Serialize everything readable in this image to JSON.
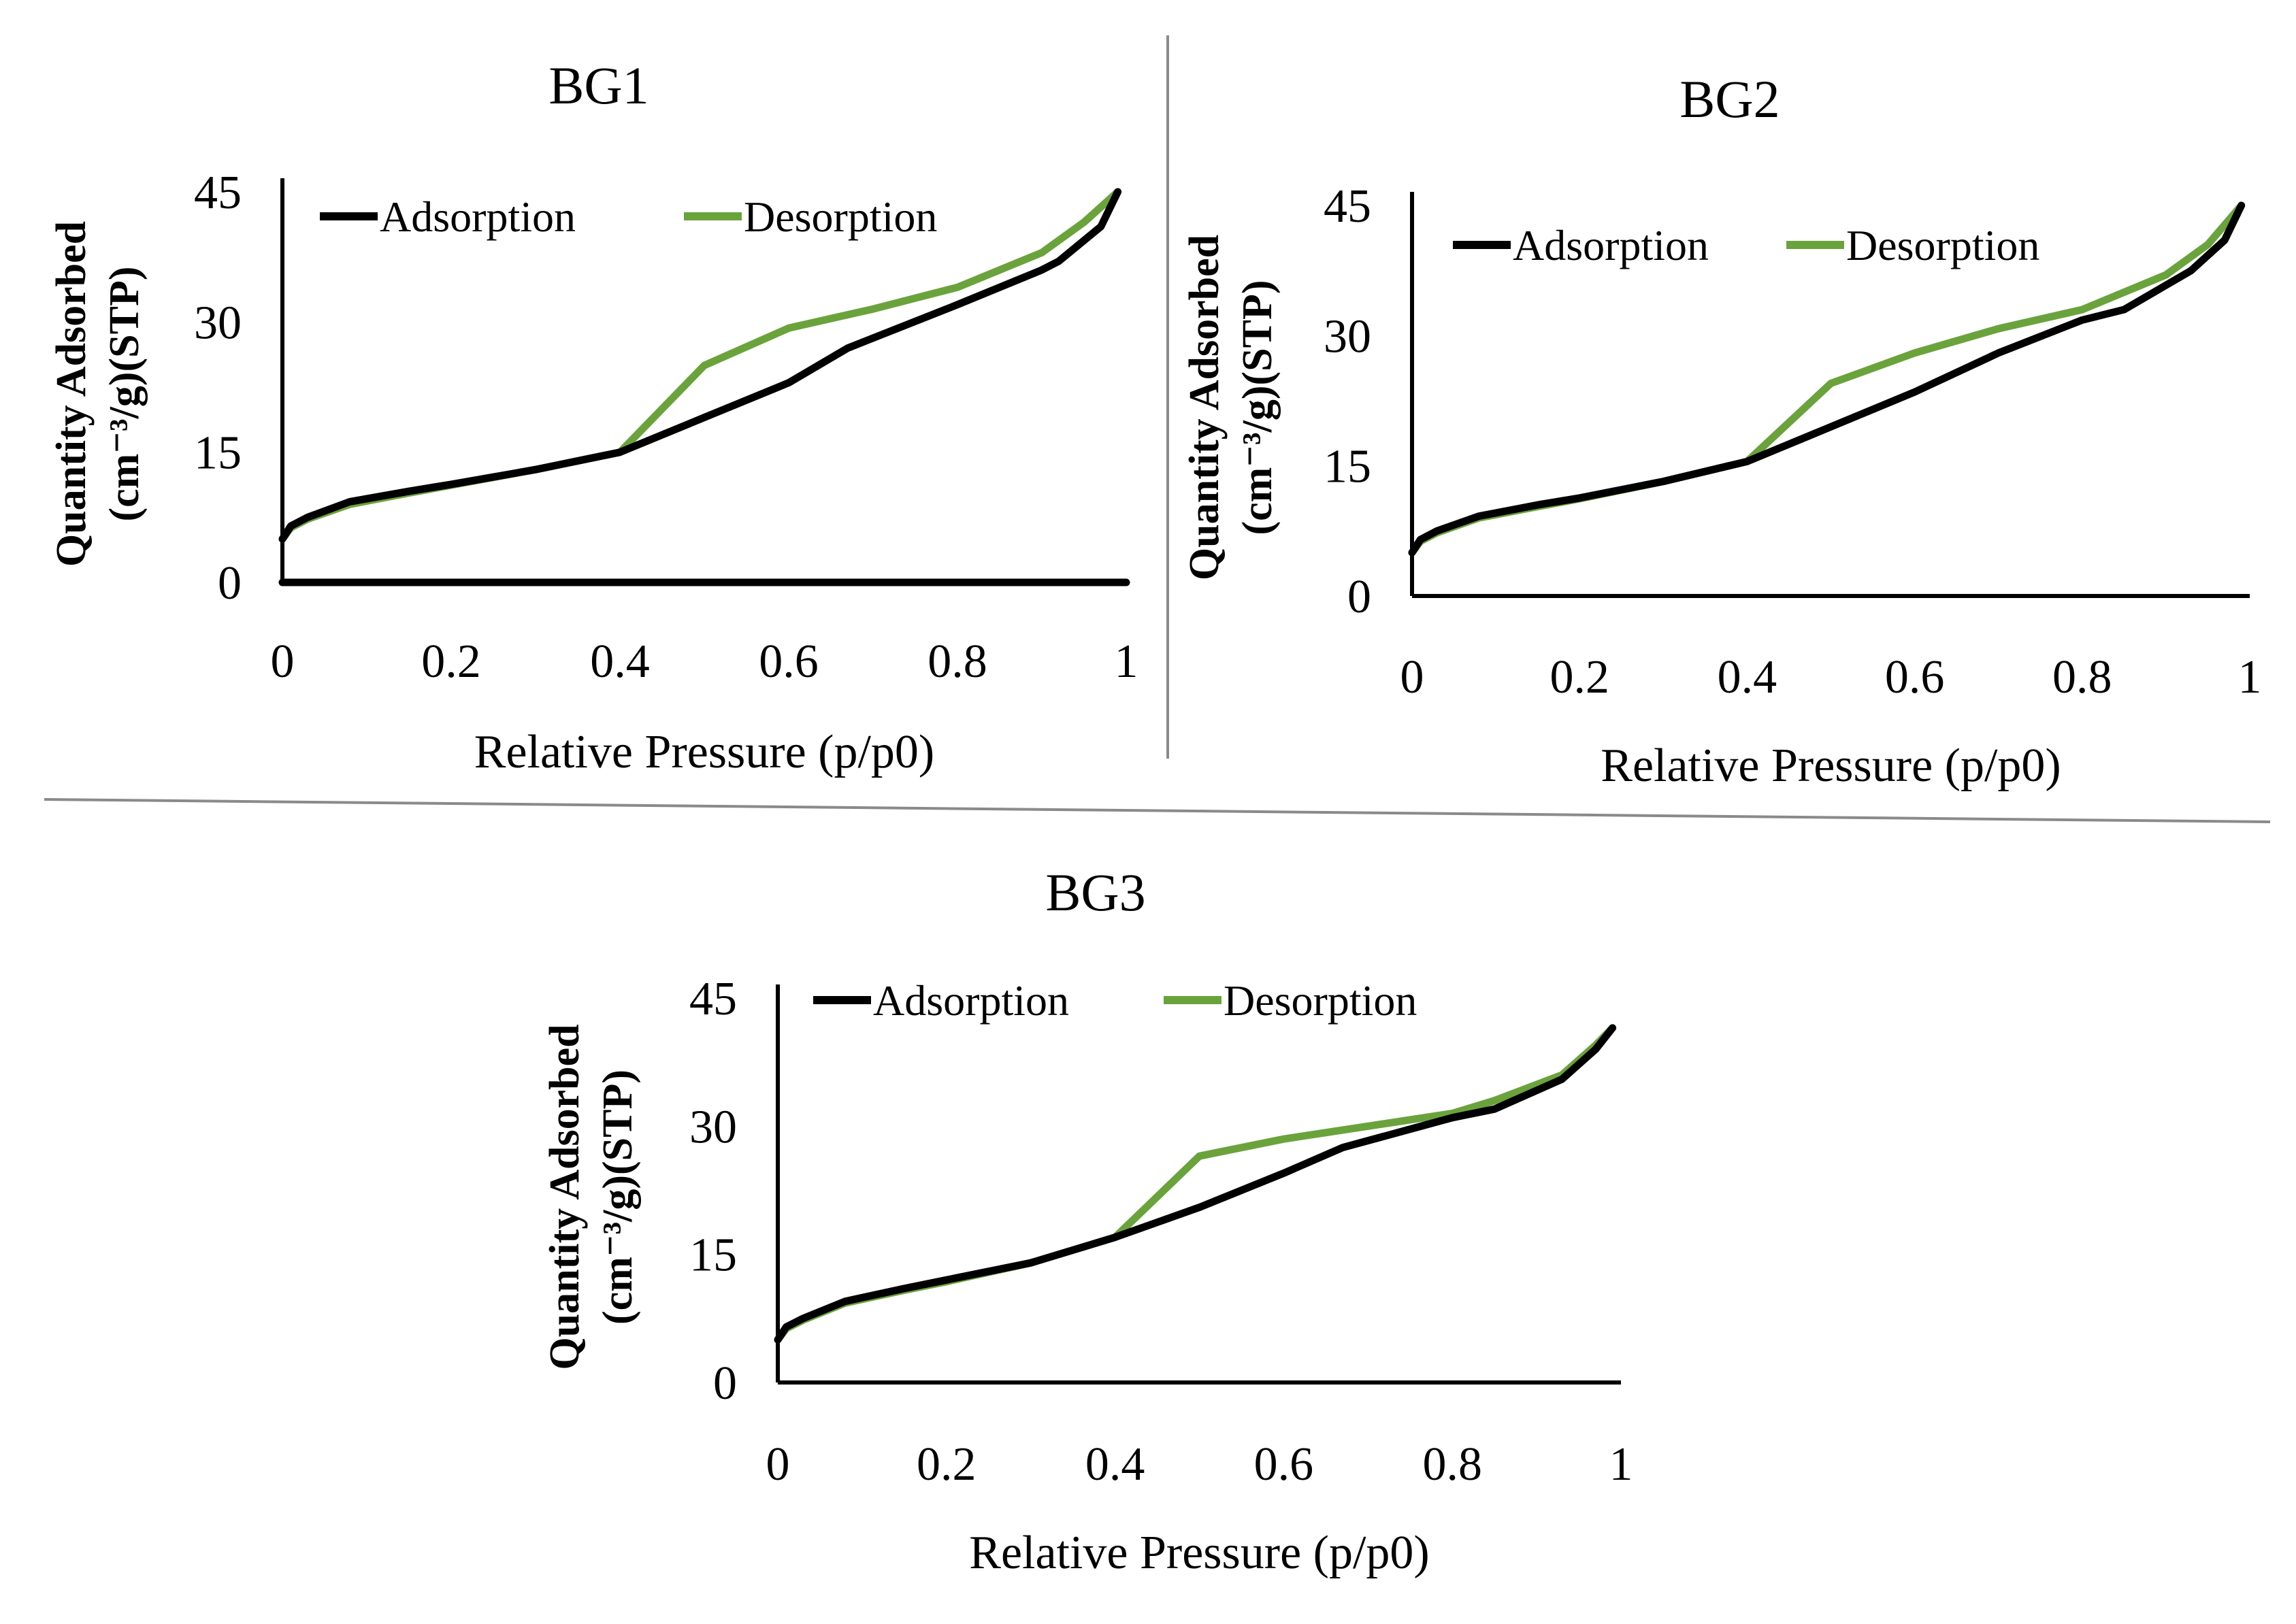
{
  "colors": {
    "adsorption": "#000000",
    "desorption": "#6aa33c"
  },
  "chart_data": [
    {
      "type": "line",
      "title": "BG1",
      "xlabel": "Relative Pressure (p/p0)",
      "ylabel_line1": "Quantity Adsorbed",
      "ylabel_line2": "(cm⁻³/g)(STP)",
      "xlim": [
        0,
        1
      ],
      "ylim": [
        0,
        45
      ],
      "xticks": [
        "0",
        "0.2",
        "0.4",
        "0.6",
        "0.8",
        "1"
      ],
      "yticks": [
        "0",
        "15",
        "30",
        "45"
      ],
      "legend_position": "top-left",
      "series": [
        {
          "name": "Adsorption",
          "x": [
            0,
            0.01,
            0.03,
            0.08,
            0.15,
            0.2,
            0.3,
            0.4,
            0.5,
            0.6,
            0.67,
            0.8,
            0.9,
            0.92,
            0.97,
            0.99
          ],
          "y": [
            5,
            6.5,
            7.5,
            9.3,
            10.5,
            11.3,
            13,
            15,
            19,
            23,
            27,
            32,
            36,
            37,
            41,
            45
          ]
        },
        {
          "name": "Desorption",
          "x": [
            0,
            0.01,
            0.03,
            0.08,
            0.15,
            0.2,
            0.3,
            0.4,
            0.5,
            0.6,
            0.7,
            0.8,
            0.9,
            0.95,
            0.99
          ],
          "y": [
            5,
            6.3,
            7.3,
            9,
            10.3,
            11.2,
            13,
            15,
            25,
            29.3,
            31.5,
            34,
            38,
            41.5,
            45
          ]
        },
        {
          "name": "Baseline",
          "x": [
            0,
            1
          ],
          "y": [
            0,
            0
          ]
        }
      ]
    },
    {
      "type": "line",
      "title": "BG2",
      "xlabel": "Relative Pressure (p/p0)",
      "ylabel_line1": "Quantity Adsorbed",
      "ylabel_line2": "(cm⁻³/g)(STP)",
      "xlim": [
        0,
        1
      ],
      "ylim": [
        0,
        45
      ],
      "xticks": [
        "0",
        "0.2",
        "0.4",
        "0.6",
        "0.8",
        "1"
      ],
      "yticks": [
        "0",
        "15",
        "30",
        "45"
      ],
      "legend_position": "top-left",
      "series": [
        {
          "name": "Adsorption",
          "x": [
            0,
            0.01,
            0.03,
            0.08,
            0.15,
            0.2,
            0.3,
            0.4,
            0.5,
            0.6,
            0.7,
            0.8,
            0.85,
            0.93,
            0.97,
            0.99
          ],
          "y": [
            5,
            6.5,
            7.5,
            9.2,
            10.5,
            11.3,
            13.2,
            15.5,
            19.5,
            23.5,
            28,
            31.8,
            33,
            37.5,
            41,
            45
          ]
        },
        {
          "name": "Desorption",
          "x": [
            0,
            0.01,
            0.03,
            0.08,
            0.15,
            0.2,
            0.3,
            0.4,
            0.5,
            0.6,
            0.7,
            0.8,
            0.9,
            0.95,
            0.99
          ],
          "y": [
            5,
            6.3,
            7.3,
            9,
            10.3,
            11.2,
            13.2,
            15.5,
            24.5,
            28,
            30.8,
            33,
            37,
            40.5,
            45
          ]
        }
      ]
    },
    {
      "type": "line",
      "title": "BG3",
      "xlabel": "Relative Pressure (p/p0)",
      "ylabel_line1": "Quantity Adsorbed",
      "ylabel_line2": "(cm⁻³/g)(STP)",
      "xlim": [
        0,
        1
      ],
      "ylim": [
        0,
        45
      ],
      "xticks": [
        "0",
        "0.2",
        "0.4",
        "0.6",
        "0.8",
        "1"
      ],
      "yticks": [
        "0",
        "15",
        "30",
        "45"
      ],
      "legend_position": "top-left",
      "series": [
        {
          "name": "Adsorption",
          "x": [
            0,
            0.01,
            0.03,
            0.08,
            0.15,
            0.2,
            0.3,
            0.4,
            0.5,
            0.6,
            0.67,
            0.8,
            0.85,
            0.93,
            0.97,
            0.99
          ],
          "y": [
            5,
            6.5,
            7.5,
            9.5,
            11,
            12,
            14,
            17,
            20.5,
            24.5,
            27.5,
            31,
            32,
            35.5,
            39,
            41.5
          ]
        },
        {
          "name": "Desorption",
          "x": [
            0,
            0.01,
            0.03,
            0.08,
            0.15,
            0.2,
            0.3,
            0.4,
            0.5,
            0.6,
            0.7,
            0.8,
            0.85,
            0.93,
            0.97,
            0.99
          ],
          "y": [
            5,
            6.3,
            7.3,
            9.3,
            10.8,
            11.8,
            14,
            17,
            26.5,
            28.5,
            30,
            31.5,
            33,
            36,
            39.5,
            41.5
          ]
        }
      ]
    }
  ]
}
